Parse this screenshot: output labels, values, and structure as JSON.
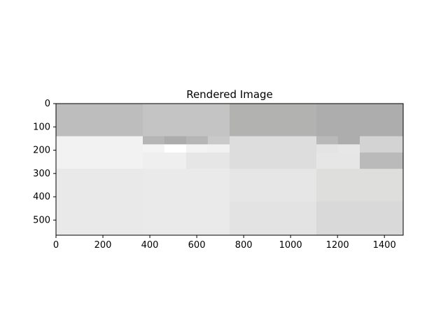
{
  "chart_data": {
    "type": "heatmap",
    "title": "Rendered Image",
    "xlabel": "",
    "ylabel": "",
    "xlim": [
      0,
      1480
    ],
    "ylim": [
      565,
      0
    ],
    "x_ticks": [
      "0",
      "200",
      "400",
      "600",
      "800",
      "1000",
      "1200",
      "1400"
    ],
    "y_ticks": [
      "0",
      "100",
      "200",
      "300",
      "400",
      "500"
    ],
    "grid": false,
    "colormap": "grayscale",
    "cells": [
      {
        "x": [
          0,
          370
        ],
        "y": [
          0,
          140
        ],
        "color": "#bdbdbd"
      },
      {
        "x": [
          370,
          740
        ],
        "y": [
          0,
          140
        ],
        "color": "#c4c4c4"
      },
      {
        "x": [
          740,
          1110
        ],
        "y": [
          0,
          140
        ],
        "color": "#b2b3b1"
      },
      {
        "x": [
          1110,
          1480
        ],
        "y": [
          0,
          140
        ],
        "color": "#adadad"
      },
      {
        "x": [
          0,
          370
        ],
        "y": [
          140,
          280
        ],
        "color": "#f2f2f2"
      },
      {
        "x": [
          370,
          462
        ],
        "y": [
          140,
          175
        ],
        "color": "#b5b5b5"
      },
      {
        "x": [
          462,
          555
        ],
        "y": [
          140,
          175
        ],
        "color": "#acacac"
      },
      {
        "x": [
          555,
          647
        ],
        "y": [
          140,
          175
        ],
        "color": "#b5b5b5"
      },
      {
        "x": [
          647,
          740
        ],
        "y": [
          140,
          175
        ],
        "color": "#c9c9c9"
      },
      {
        "x": [
          370,
          462
        ],
        "y": [
          175,
          210
        ],
        "color": "#f4f4f4"
      },
      {
        "x": [
          462,
          555
        ],
        "y": [
          175,
          210
        ],
        "color": "#ffffff"
      },
      {
        "x": [
          555,
          647
        ],
        "y": [
          175,
          210
        ],
        "color": "#f3f3f3"
      },
      {
        "x": [
          647,
          740
        ],
        "y": [
          175,
          210
        ],
        "color": "#f1f1f1"
      },
      {
        "x": [
          370,
          555
        ],
        "y": [
          210,
          280
        ],
        "color": "#efefef"
      },
      {
        "x": [
          555,
          740
        ],
        "y": [
          210,
          280
        ],
        "color": "#e6e6e6"
      },
      {
        "x": [
          740,
          1110
        ],
        "y": [
          140,
          280
        ],
        "color": "#dddddd"
      },
      {
        "x": [
          1110,
          1202
        ],
        "y": [
          140,
          175
        ],
        "color": "#b9b9b9"
      },
      {
        "x": [
          1202,
          1295
        ],
        "y": [
          140,
          175
        ],
        "color": "#adadad"
      },
      {
        "x": [
          1110,
          1202
        ],
        "y": [
          175,
          210
        ],
        "color": "#e4e4e4"
      },
      {
        "x": [
          1202,
          1295
        ],
        "y": [
          175,
          210
        ],
        "color": "#e7e7e7"
      },
      {
        "x": [
          1110,
          1295
        ],
        "y": [
          210,
          280
        ],
        "color": "#e6e6e6"
      },
      {
        "x": [
          1295,
          1480
        ],
        "y": [
          140,
          210
        ],
        "color": "#d3d3d3"
      },
      {
        "x": [
          1295,
          1480
        ],
        "y": [
          210,
          280
        ],
        "color": "#bababa"
      },
      {
        "x": [
          0,
          370
        ],
        "y": [
          280,
          420
        ],
        "color": "#e9e9e9"
      },
      {
        "x": [
          370,
          740
        ],
        "y": [
          280,
          420
        ],
        "color": "#eaeaea"
      },
      {
        "x": [
          740,
          1110
        ],
        "y": [
          280,
          420
        ],
        "color": "#e6e6e6"
      },
      {
        "x": [
          1110,
          1480
        ],
        "y": [
          280,
          420
        ],
        "color": "#dededc"
      },
      {
        "x": [
          0,
          370
        ],
        "y": [
          420,
          565
        ],
        "color": "#e9e9e9"
      },
      {
        "x": [
          370,
          740
        ],
        "y": [
          420,
          565
        ],
        "color": "#eaeaea"
      },
      {
        "x": [
          740,
          1110
        ],
        "y": [
          420,
          565
        ],
        "color": "#e3e3e3"
      },
      {
        "x": [
          1110,
          1480
        ],
        "y": [
          420,
          565
        ],
        "color": "#d9d9d9"
      }
    ]
  }
}
